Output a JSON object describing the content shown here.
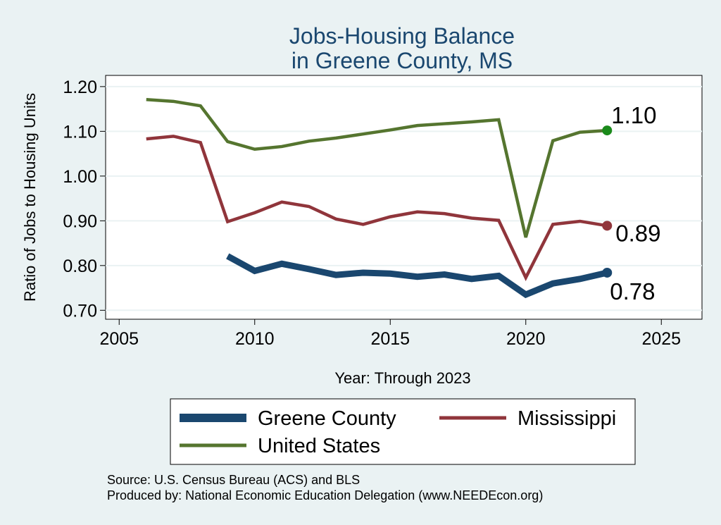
{
  "chart_data": {
    "type": "line",
    "title_lines": [
      "Jobs-Housing Balance",
      "in Greene County, MS"
    ],
    "xlabel": "Year: Through 2023",
    "ylabel": "Ratio of Jobs to Housing Units",
    "xlim": [
      2004.5,
      2026.5
    ],
    "ylim": [
      0.68,
      1.225
    ],
    "xticks": [
      2005,
      2010,
      2015,
      2020,
      2025
    ],
    "yticks": [
      0.7,
      0.8,
      0.9,
      1.0,
      1.1,
      1.2
    ],
    "ytick_labels": [
      "0.70",
      "0.80",
      "0.90",
      "1.00",
      "1.10",
      "1.20"
    ],
    "grid": true,
    "legend_position": "bottom",
    "series": [
      {
        "name": "Greene County",
        "color": "#1a476f",
        "width": "thick",
        "end_label": "0.78",
        "x": [
          2009,
          2010,
          2011,
          2012,
          2013,
          2014,
          2015,
          2016,
          2017,
          2018,
          2019,
          2020,
          2021,
          2022,
          2023
        ],
        "y": [
          0.821,
          0.788,
          0.804,
          0.792,
          0.779,
          0.784,
          0.782,
          0.775,
          0.78,
          0.77,
          0.777,
          0.735,
          0.76,
          0.77,
          0.784
        ]
      },
      {
        "name": "Mississippi",
        "color": "#90353b",
        "width": "medium",
        "end_label": "0.89",
        "x": [
          2006,
          2007,
          2008,
          2009,
          2010,
          2011,
          2012,
          2013,
          2014,
          2015,
          2016,
          2017,
          2018,
          2019,
          2020,
          2021,
          2022,
          2023
        ],
        "y": [
          1.083,
          1.089,
          1.075,
          0.898,
          0.918,
          0.942,
          0.932,
          0.904,
          0.892,
          0.909,
          0.92,
          0.916,
          0.906,
          0.901,
          0.773,
          0.892,
          0.899,
          0.889
        ]
      },
      {
        "name": "United States",
        "color": "#55752f",
        "width": "medium",
        "end_label": "1.10",
        "x": [
          2006,
          2007,
          2008,
          2009,
          2010,
          2011,
          2012,
          2013,
          2014,
          2015,
          2016,
          2017,
          2018,
          2019,
          2020,
          2021,
          2022,
          2023
        ],
        "y": [
          1.171,
          1.167,
          1.157,
          1.077,
          1.06,
          1.066,
          1.078,
          1.085,
          1.094,
          1.103,
          1.113,
          1.117,
          1.121,
          1.126,
          0.863,
          1.079,
          1.098,
          1.102
        ]
      }
    ],
    "end_marker_color_us": "#1b8a1b"
  },
  "source_line": "Source: U.S. Census Bureau (ACS) and BLS",
  "produced_line": "Produced by: National Economic Education Delegation (www.NEEDEcon.org)"
}
